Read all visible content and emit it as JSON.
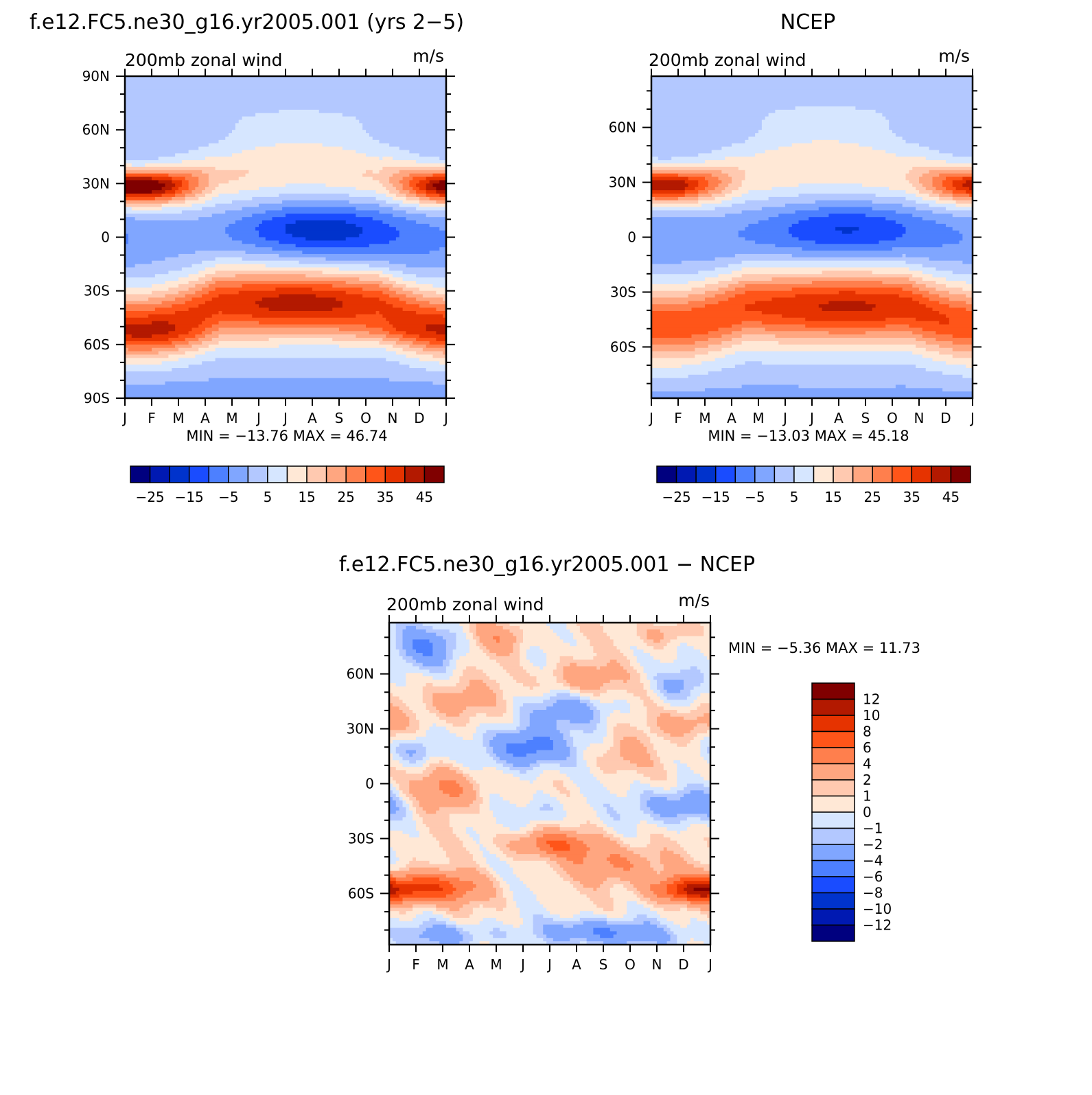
{
  "chart_data": [
    {
      "type": "heatmap",
      "title": "f.e12.FC5.ne30_g16.yr2005.001 (yrs 2−5)",
      "subtitle_left": "200mb  zonal  wind",
      "subtitle_right": "m/s",
      "x_ticks": [
        "J",
        "F",
        "M",
        "A",
        "M",
        "J",
        "J",
        "A",
        "S",
        "O",
        "N",
        "D",
        "J"
      ],
      "y_ticks": [
        "90N",
        "60N",
        "30N",
        "0",
        "30S",
        "60S",
        "90S"
      ],
      "y_values": [
        90,
        60,
        30,
        0,
        -30,
        -60,
        -90
      ],
      "ylim": [
        -90,
        90
      ],
      "stats": "MIN = −13.76  MAX =   46.74",
      "min": -13.76,
      "max": 46.74,
      "colorbar": {
        "labels": [
          "−25",
          "−15",
          "−5",
          "5",
          "15",
          "25",
          "35",
          "45"
        ],
        "levels": [
          -30,
          -25,
          -20,
          -15,
          -10,
          -5,
          0,
          5,
          10,
          15,
          20,
          25,
          30,
          35,
          40,
          45
        ],
        "colors": [
          "#00007f",
          "#0019b2",
          "#0033cc",
          "#1a4cff",
          "#4d80ff",
          "#80a6ff",
          "#b3c8ff",
          "#d6e6ff",
          "#ffe8d6",
          "#ffc9b0",
          "#ffa680",
          "#ff7f4d",
          "#ff5519",
          "#e63300",
          "#b31900",
          "#800000"
        ]
      }
    },
    {
      "type": "heatmap",
      "title": "NCEP",
      "subtitle_left": "200mb  zonal  wind",
      "subtitle_right": "m/s",
      "x_ticks": [
        "J",
        "F",
        "M",
        "A",
        "M",
        "J",
        "J",
        "A",
        "S",
        "O",
        "N",
        "D",
        "J"
      ],
      "y_ticks": [
        "60N",
        "30N",
        "0",
        "30S",
        "60S"
      ],
      "y_values": [
        60,
        30,
        0,
        -30,
        -60
      ],
      "ylim": [
        -88,
        88
      ],
      "stats": "MIN = −13.03  MAX =   45.18",
      "min": -13.03,
      "max": 45.18,
      "colorbar": {
        "labels": [
          "−25",
          "−15",
          "−5",
          "5",
          "15",
          "25",
          "35",
          "45"
        ]
      }
    },
    {
      "type": "heatmap",
      "title": "f.e12.FC5.ne30_g16.yr2005.001  −  NCEP",
      "subtitle_left": "200mb  zonal  wind",
      "subtitle_right": "m/s",
      "x_ticks": [
        "J",
        "F",
        "M",
        "A",
        "M",
        "J",
        "J",
        "A",
        "S",
        "O",
        "N",
        "D",
        "J"
      ],
      "y_ticks": [
        "60N",
        "30N",
        "0",
        "30S",
        "60S"
      ],
      "y_values": [
        60,
        30,
        0,
        -30,
        -60
      ],
      "ylim": [
        -88,
        88
      ],
      "stats": "MIN =    −5.36  MAX =   11.73",
      "min": -5.36,
      "max": 11.73,
      "colorbar": {
        "labels": [
          "12",
          "10",
          "8",
          "6",
          "4",
          "2",
          "1",
          "0",
          "−1",
          "−2",
          "−4",
          "−6",
          "−8",
          "−10",
          "−12"
        ],
        "colors": [
          "#800000",
          "#b31900",
          "#e63300",
          "#ff5519",
          "#ff7f4d",
          "#ffa680",
          "#ffc9b0",
          "#ffe8d6",
          "#d6e6ff",
          "#b3c8ff",
          "#80a6ff",
          "#4d80ff",
          "#1a4cff",
          "#0033cc",
          "#0019b2",
          "#00007f"
        ]
      }
    }
  ]
}
